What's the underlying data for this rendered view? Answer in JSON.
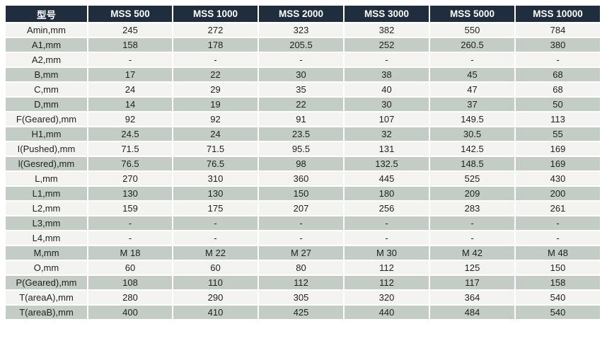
{
  "table": {
    "header": [
      "型号",
      "MSS 500",
      "MSS 1000",
      "MSS 2000",
      "MSS 3000",
      "MSS 5000",
      "MSS 10000"
    ],
    "rows": [
      {
        "label": "Amin,mm",
        "values": [
          "245",
          "272",
          "323",
          "382",
          "550",
          "784"
        ]
      },
      {
        "label": "A1,mm",
        "values": [
          "158",
          "178",
          "205.5",
          "252",
          "260.5",
          "380"
        ]
      },
      {
        "label": "A2,mm",
        "values": [
          "-",
          "-",
          "-",
          "-",
          "-",
          "-"
        ]
      },
      {
        "label": "B,mm",
        "values": [
          "17",
          "22",
          "30",
          "38",
          "45",
          "68"
        ]
      },
      {
        "label": "C,mm",
        "values": [
          "24",
          "29",
          "35",
          "40",
          "47",
          "68"
        ]
      },
      {
        "label": "D,mm",
        "values": [
          "14",
          "19",
          "22",
          "30",
          "37",
          "50"
        ]
      },
      {
        "label": "F(Geared),mm",
        "values": [
          "92",
          "92",
          "91",
          "107",
          "149.5",
          "113"
        ]
      },
      {
        "label": "H1,mm",
        "values": [
          "24.5",
          "24",
          "23.5",
          "32",
          "30.5",
          "55"
        ]
      },
      {
        "label": "I(Pushed),mm",
        "values": [
          "71.5",
          "71.5",
          "95.5",
          "131",
          "142.5",
          "169"
        ]
      },
      {
        "label": "l(Gesred),mm",
        "values": [
          "76.5",
          "76.5",
          "98",
          "132.5",
          "148.5",
          "169"
        ]
      },
      {
        "label": "L,mm",
        "values": [
          "270",
          "310",
          "360",
          "445",
          "525",
          "430"
        ]
      },
      {
        "label": "L1,mm",
        "values": [
          "130",
          "130",
          "150",
          "180",
          "209",
          "200"
        ]
      },
      {
        "label": "L2,mm",
        "values": [
          "159",
          "175",
          "207",
          "256",
          "283",
          "261"
        ]
      },
      {
        "label": "L3,mm",
        "values": [
          "-",
          "-",
          "-",
          "-",
          "-",
          "-"
        ]
      },
      {
        "label": "L4,mm",
        "values": [
          "-",
          "-",
          "-",
          "-",
          "-",
          "-"
        ]
      },
      {
        "label": "M,mm",
        "values": [
          "M 18",
          "M 22",
          "M 27",
          "M 30",
          "M 42",
          "M 48"
        ]
      },
      {
        "label": "O,mm",
        "values": [
          "60",
          "60",
          "80",
          "112",
          "125",
          "150"
        ]
      },
      {
        "label": "P(Geared),mm",
        "values": [
          "108",
          "110",
          "112",
          "112",
          "117",
          "158"
        ]
      },
      {
        "label": "T(areaA),mm",
        "values": [
          "280",
          "290",
          "305",
          "320",
          "364",
          "540"
        ]
      },
      {
        "label": "T(areaB),mm",
        "values": [
          "400",
          "410",
          "425",
          "440",
          "484",
          "540"
        ]
      }
    ]
  },
  "colors": {
    "header_bg": "#1f2d3d",
    "row_light": "#f3f4f2",
    "row_dark": "#c3cdc5"
  }
}
